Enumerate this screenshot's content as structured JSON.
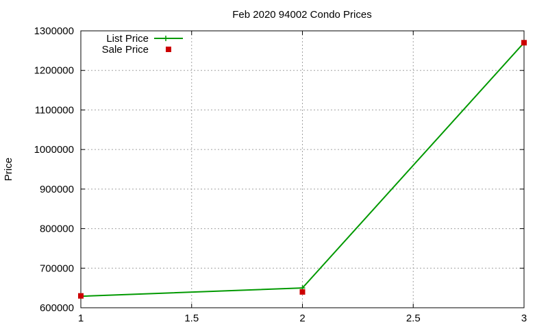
{
  "chart_data": {
    "type": "line",
    "title": "Feb 2020 94002 Condo Prices",
    "xlabel": "",
    "ylabel": "Price",
    "xlim": [
      1,
      3
    ],
    "ylim": [
      600000,
      1300000
    ],
    "x_ticks": [
      "1",
      "1.5",
      "2",
      "2.5",
      "3"
    ],
    "y_ticks": [
      "600000",
      "700000",
      "800000",
      "900000",
      "1000000",
      "1100000",
      "1200000",
      "1300000"
    ],
    "grid": true,
    "legend_position": "top-left",
    "x": [
      1,
      2,
      3
    ],
    "series": [
      {
        "name": "List Price",
        "style": "linespoints",
        "marker": "plus",
        "color": "#009900",
        "values": [
          629000,
          650000,
          1270000
        ]
      },
      {
        "name": "Sale Price",
        "style": "points",
        "marker": "square",
        "color": "#cc0000",
        "values": [
          630000,
          640000,
          1270000
        ]
      }
    ]
  }
}
